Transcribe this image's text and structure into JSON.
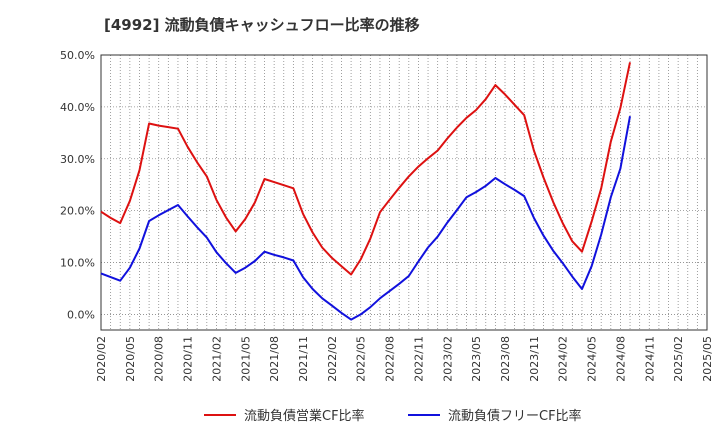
{
  "title": "[4992]  流動負債キャッシュフロー比率の推移",
  "chart_data": {
    "type": "line",
    "title": "[4992]  流動負債キャッシュフロー比率の推移",
    "xlabel": "",
    "ylabel": "",
    "ylim": [
      -3,
      50
    ],
    "y_ticks": [
      "0.0%",
      "10.0%",
      "20.0%",
      "30.0%",
      "40.0%",
      "50.0%"
    ],
    "x_ticks": [
      "2020/02",
      "2020/05",
      "2020/08",
      "2020/11",
      "2021/02",
      "2021/05",
      "2021/08",
      "2021/11",
      "2022/02",
      "2022/05",
      "2022/08",
      "2022/11",
      "2023/02",
      "2023/05",
      "2023/08",
      "2023/11",
      "2024/02",
      "2024/05",
      "2024/08",
      "2024/11",
      "2025/02",
      "2025/05"
    ],
    "grid": true,
    "legend": "bottom",
    "series": [
      {
        "name": "流動負債営業CF比率",
        "color": "#dd1111",
        "values": [
          19.8,
          18.6,
          17.6,
          21.9,
          27.8,
          36.8,
          36.4,
          36.1,
          35.8,
          32.3,
          29.3,
          26.6,
          22.1,
          18.7,
          16.0,
          18.4,
          21.6,
          26.1,
          25.5,
          24.9,
          24.3,
          19.4,
          15.8,
          12.9,
          10.9,
          9.3,
          7.7,
          10.6,
          14.6,
          19.7,
          22.1,
          24.4,
          26.6,
          28.5,
          30.1,
          31.6,
          33.9,
          36.0,
          37.9,
          39.4,
          41.5,
          44.2,
          42.4,
          40.4,
          38.4,
          31.6,
          26.4,
          21.7,
          17.6,
          14.1,
          12.1,
          17.9,
          24.3,
          33.3,
          39.8,
          48.6
        ]
      },
      {
        "name": "流動負債フリーCF比率",
        "color": "#1111dd",
        "values": [
          7.9,
          7.2,
          6.5,
          9.0,
          12.7,
          18.0,
          19.1,
          20.1,
          21.1,
          18.9,
          16.8,
          14.8,
          12.0,
          9.9,
          8.0,
          9.0,
          10.3,
          12.1,
          11.5,
          11.0,
          10.4,
          7.2,
          4.9,
          3.1,
          1.7,
          0.3,
          -1.0,
          0.0,
          1.4,
          3.1,
          4.5,
          5.9,
          7.4,
          10.2,
          12.9,
          15.0,
          17.7,
          20.1,
          22.6,
          23.6,
          24.8,
          26.3,
          25.1,
          24.0,
          22.8,
          18.6,
          15.2,
          12.3,
          9.9,
          7.3,
          4.9,
          9.3,
          15.4,
          22.6,
          28.1,
          38.2
        ]
      }
    ]
  }
}
